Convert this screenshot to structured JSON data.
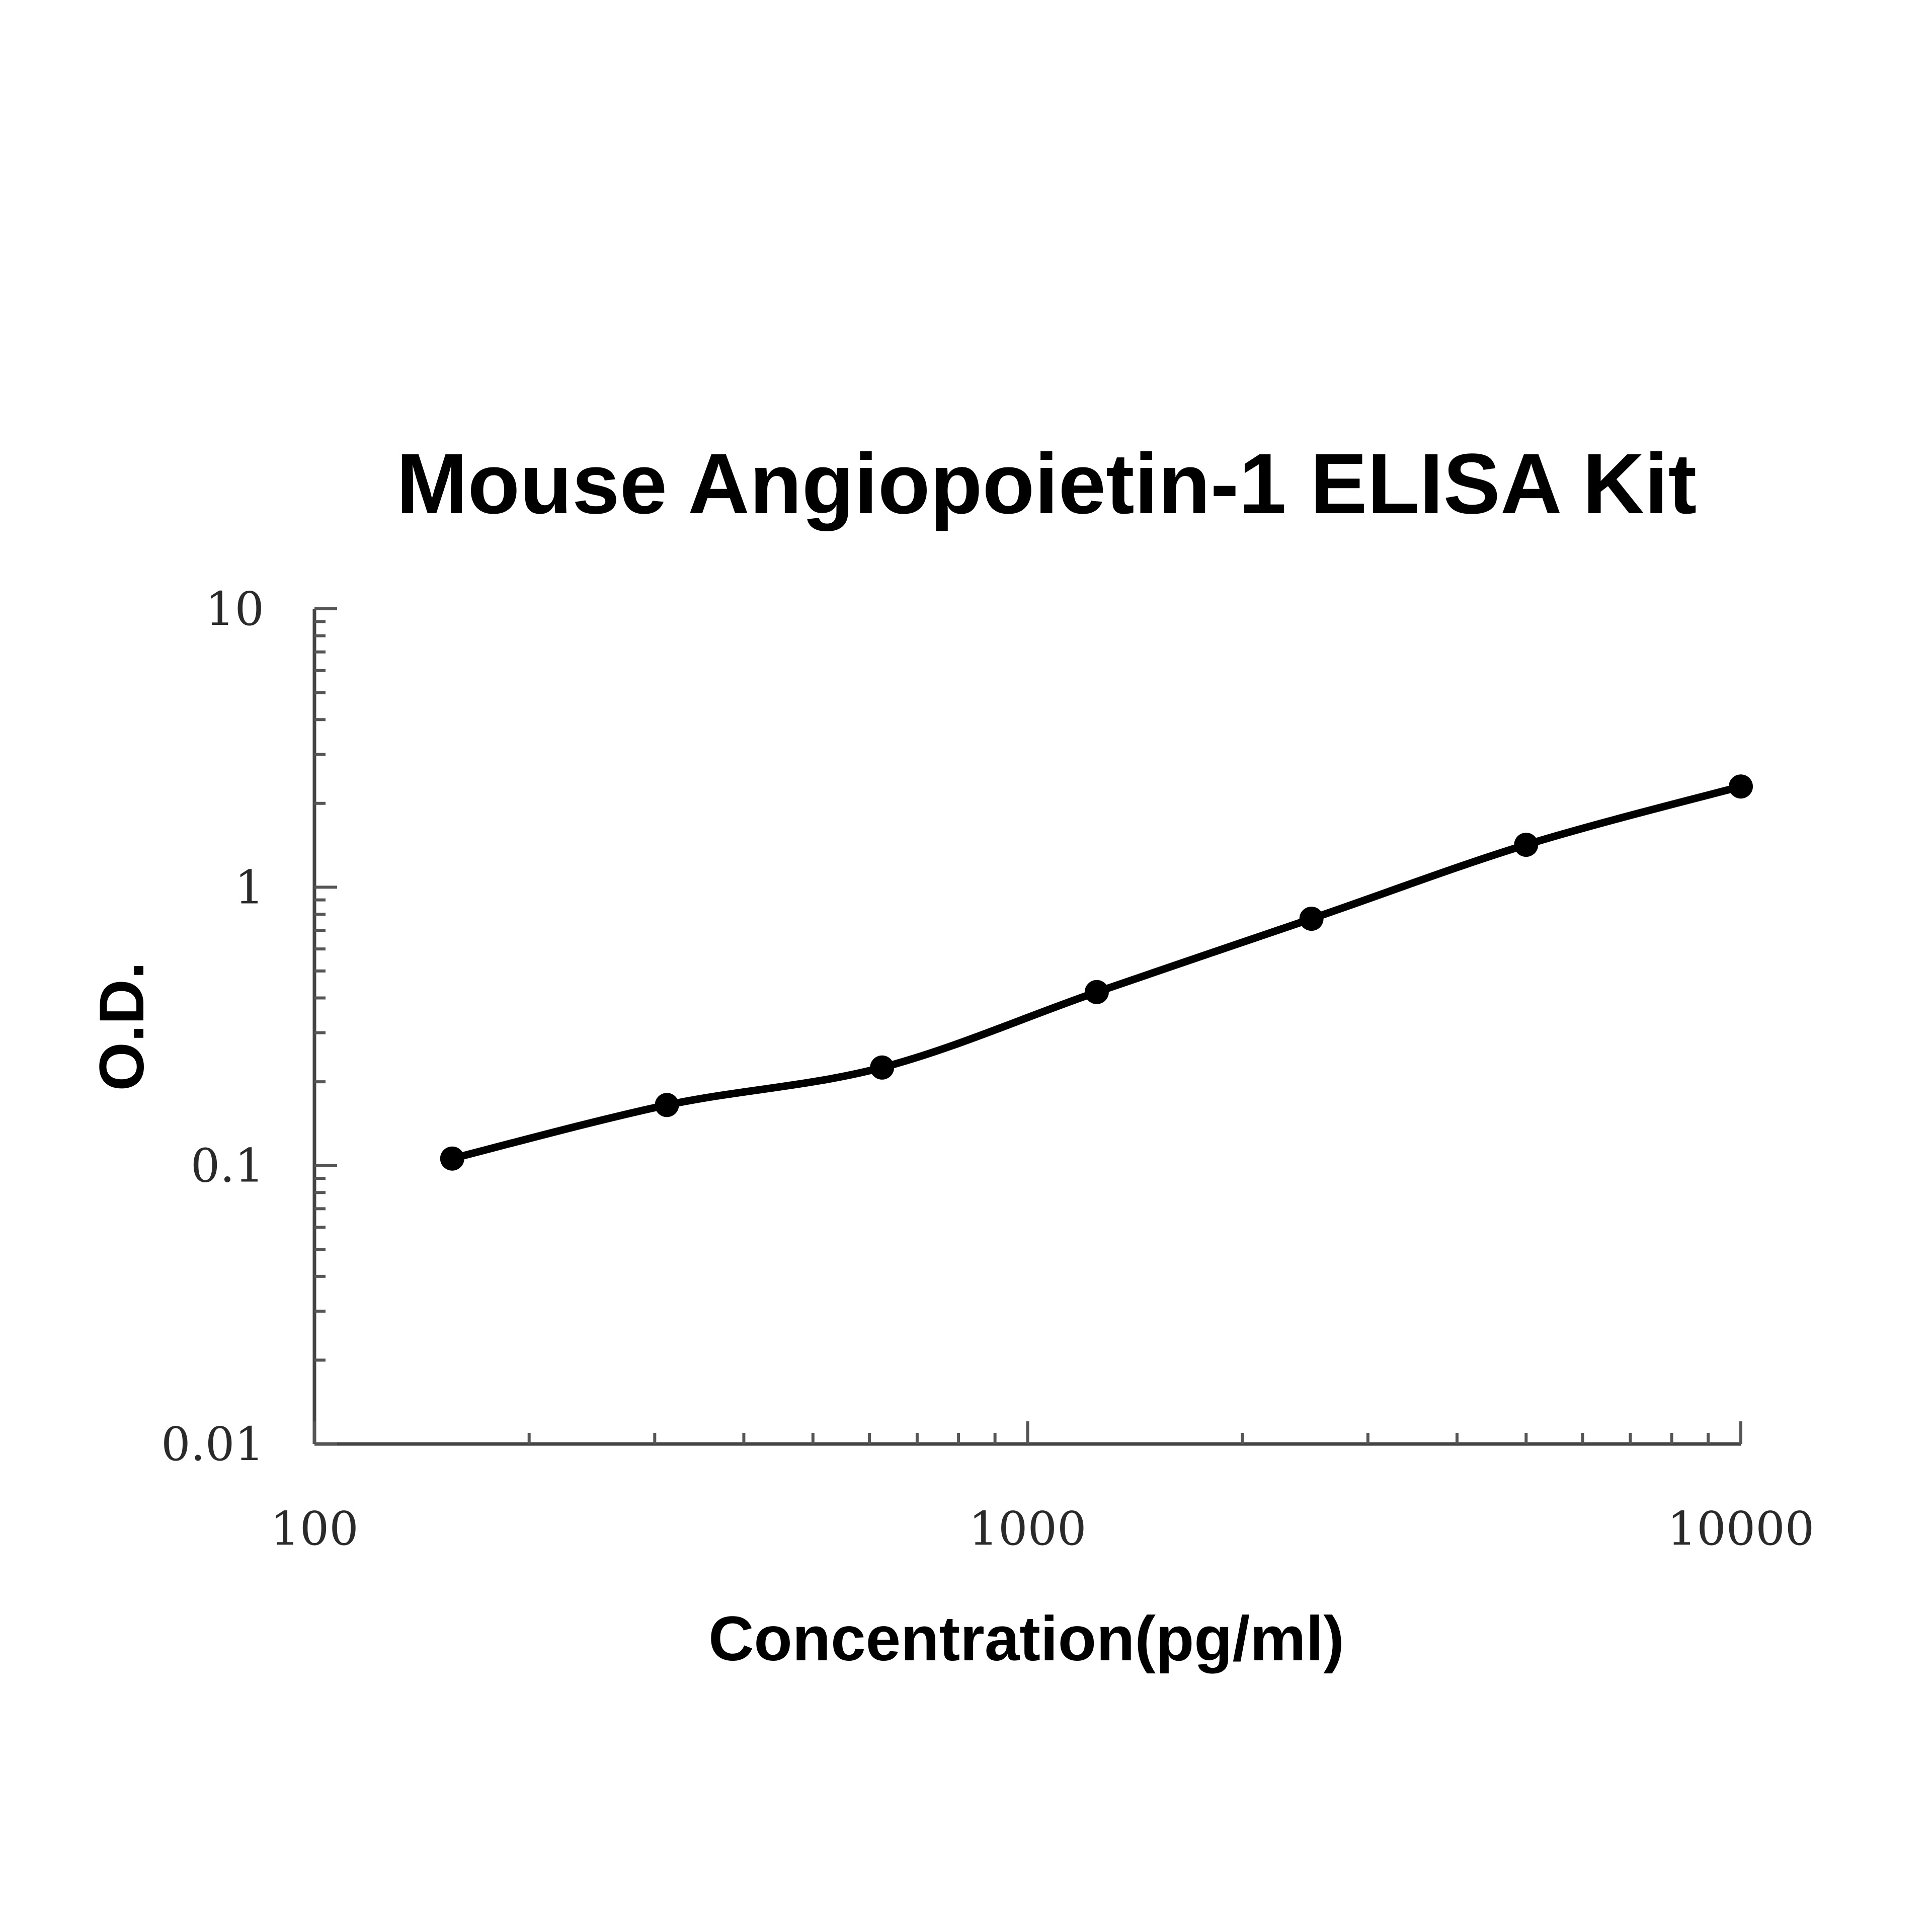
{
  "chart_data": {
    "type": "scatter",
    "title": "Mouse Angiopoietin-1 ELISA Kit",
    "xlabel": "Concentration(pg/ml)",
    "ylabel": "O.D.",
    "xscale": "log",
    "yscale": "log",
    "xlim": [
      100,
      10000
    ],
    "ylim": [
      0.01,
      10
    ],
    "x_tick_labels": [
      "100",
      "1000",
      "10000"
    ],
    "y_tick_labels": [
      "0.01",
      "0.1",
      "1",
      "10"
    ],
    "grid": false,
    "legend": "none",
    "series": [
      {
        "x": [
          156,
          312,
          625,
          1250,
          2500,
          5000,
          10000
        ],
        "y": [
          0.106,
          0.165,
          0.225,
          0.42,
          0.77,
          1.42,
          2.3
        ],
        "line": "smooth fitted curve",
        "markers": "filled circle"
      }
    ],
    "colors": {
      "curve": "#000000",
      "points": "#000000",
      "axis": "#444444"
    }
  }
}
